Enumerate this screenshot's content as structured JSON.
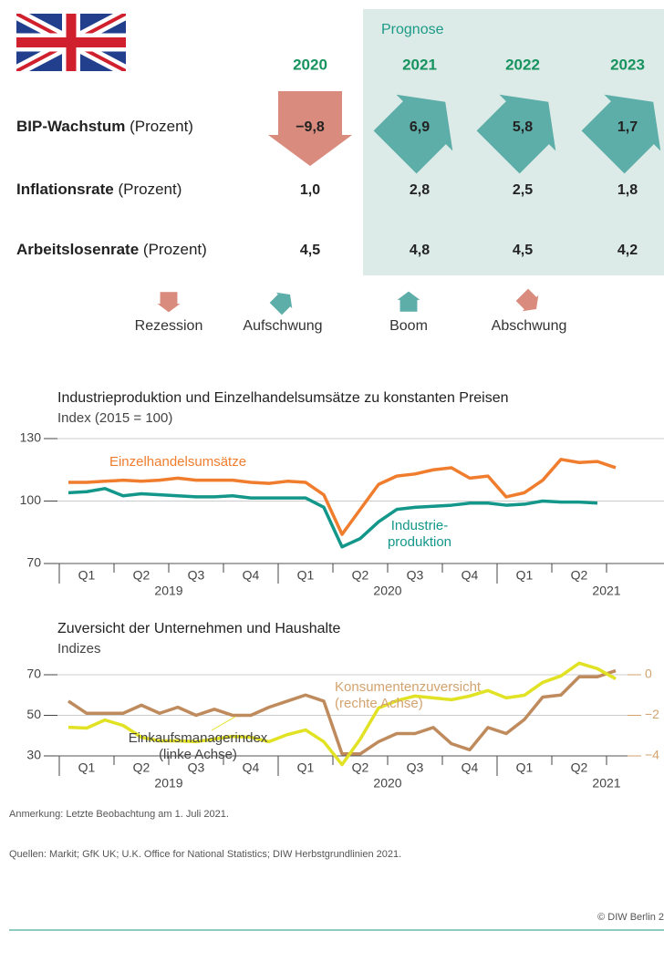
{
  "header": {
    "forecast_label": "Prognose"
  },
  "table": {
    "years": [
      "2020",
      "2021",
      "2022",
      "2023"
    ],
    "rows": [
      {
        "label": "BIP-Wachstum",
        "unit": "(Prozent)",
        "values": [
          "−9,8",
          "6,9",
          "5,8",
          "1,7"
        ],
        "phases": [
          "recession",
          "upswing",
          "upswing",
          "upswing"
        ]
      },
      {
        "label": "Inflationsrate",
        "unit": "(Prozent)",
        "values": [
          "1,0",
          "2,8",
          "2,5",
          "1,8"
        ]
      },
      {
        "label": "Arbeitslosenrate",
        "unit": "(Prozent)",
        "values": [
          "4,5",
          "4,8",
          "4,5",
          "4,2"
        ]
      }
    ]
  },
  "phase_legend": [
    {
      "phase": "recession",
      "label": "Rezession",
      "color": "#d98b7d"
    },
    {
      "phase": "upswing",
      "label": "Aufschwung",
      "color": "#5dada8"
    },
    {
      "phase": "boom",
      "label": "Boom",
      "color": "#5dada8"
    },
    {
      "phase": "downswing",
      "label": "Abschwung",
      "color": "#d98b7d"
    }
  ],
  "chart_data": [
    {
      "type": "line",
      "title": "Industrieproduktion und Einzelhandelsumsätze zu konstanten Preisen",
      "subtitle": "Index (2015 = 100)",
      "categories": [
        null,
        "Q1",
        null,
        null,
        "Q2",
        null,
        null,
        "Q3",
        null,
        null,
        "Q4",
        null,
        null,
        "Q1",
        null,
        null,
        "Q2",
        null,
        null,
        "Q3",
        null,
        null,
        "Q4",
        null,
        null,
        "Q1",
        null,
        null,
        "Q2",
        null,
        null
      ],
      "years": [
        "2019",
        "2020",
        "2021"
      ],
      "ylim": [
        70,
        130
      ],
      "yticks": [
        70,
        100,
        130
      ],
      "grid": true,
      "series": [
        {
          "label_lines": [
            "Einzelhandelsumsätze"
          ],
          "color": "#f07d2e",
          "values": [
            109,
            109,
            109.5,
            110,
            109.5,
            110,
            111,
            110,
            110,
            110,
            109,
            108.5,
            109.5,
            109,
            103,
            84,
            96,
            108,
            112,
            113,
            115,
            116,
            111,
            112,
            102,
            104,
            110,
            120,
            118.5,
            119,
            116
          ]
        },
        {
          "label_lines": [
            "Industrie-",
            "produktion"
          ],
          "color": "#13978a",
          "values": [
            104,
            104.5,
            106,
            102.5,
            103.5,
            103,
            102.5,
            102,
            102,
            102.5,
            101.5,
            101.5,
            101.5,
            101.5,
            97,
            78,
            82,
            90,
            96,
            97,
            97.5,
            98,
            99,
            99,
            98,
            98.5,
            100,
            99.5,
            99.5,
            99,
            null
          ]
        }
      ]
    },
    {
      "type": "line",
      "title": "Zuversicht der Unternehmen und Haushalte",
      "subtitle": "Indizes",
      "categories": [
        null,
        "Q1",
        null,
        null,
        "Q2",
        null,
        null,
        "Q3",
        null,
        null,
        "Q4",
        null,
        null,
        "Q1",
        null,
        null,
        "Q2",
        null,
        null,
        "Q3",
        null,
        null,
        "Q4",
        null,
        null,
        "Q1",
        null,
        null,
        "Q2",
        null,
        null
      ],
      "years": [
        "2019",
        "2020",
        "2021"
      ],
      "ylim": [
        30,
        70
      ],
      "yticks": [
        30,
        50,
        70
      ],
      "grid": true,
      "y2lim": [
        -4,
        0
      ],
      "y2ticks": [
        {
          "value": -4,
          "label": "−4"
        },
        {
          "value": -2,
          "label": "−2"
        },
        0
      ],
      "y2color": "#d2a36f",
      "series": [
        {
          "label_lines": [
            "Konsumentenzuversicht",
            "(rechte Achse)"
          ],
          "color": "#bf8a5c",
          "label_color": "#d2a36f",
          "axis": "y2",
          "values": [
            -1.3,
            -1.9,
            -1.9,
            -1.9,
            -1.5,
            -1.9,
            -1.6,
            -2.0,
            -1.7,
            -2.0,
            -2.0,
            -1.6,
            -1.3,
            -1.0,
            -1.3,
            -3.9,
            -3.9,
            -3.3,
            -2.9,
            -2.9,
            -2.6,
            -3.4,
            -3.7,
            -2.6,
            -2.9,
            -2.2,
            -1.1,
            -1.0,
            -0.1,
            -0.1,
            0.2
          ]
        },
        {
          "label_lines": [
            "Einkaufsmanagerindex",
            "(linke Achse)"
          ],
          "color": "#e2e224",
          "label_color": "#444444",
          "values": [
            44.1,
            43.7,
            47.7,
            45.0,
            39.2,
            37.4,
            37.4,
            37.0,
            38.3,
            39.6,
            39.2,
            37.0,
            40.5,
            42.8,
            37.0,
            25.7,
            38.3,
            53.6,
            57.2,
            59.5,
            58.6,
            57.7,
            59.5,
            62.2,
            58.6,
            59.9,
            66.2,
            69.4,
            75.7,
            73.0,
            68.0
          ]
        }
      ]
    }
  ],
  "notes": {
    "remark": "Anmerkung: Letzte Beobachtung am 1. Juli 2021.",
    "sources": "Quellen: Markit; GfK UK; U.K. Office for National Statistics; DIW Herbstgrundlinien 2021.",
    "copyright": "© DIW Berlin 2"
  }
}
